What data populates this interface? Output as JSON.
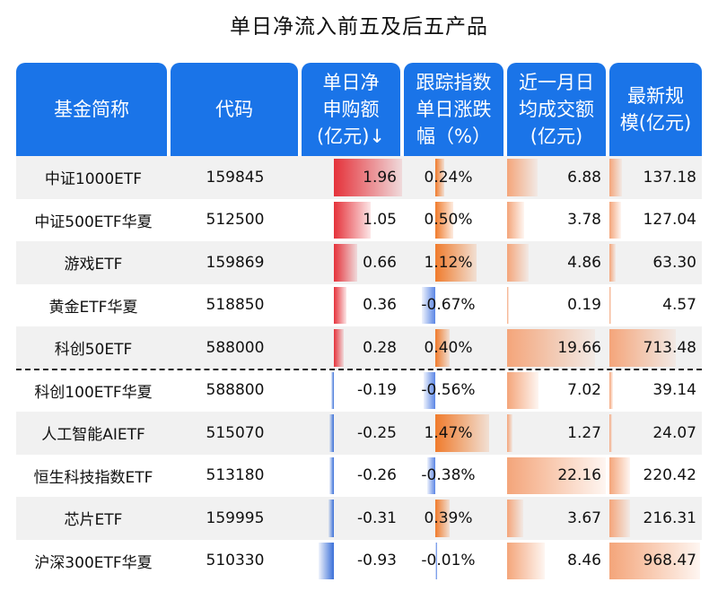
{
  "title": "单日净流入前五及后五产品",
  "headers": {
    "name": "基金简称",
    "code": "代码",
    "flow": [
      "单日净",
      "申购额",
      "(亿元)↓"
    ],
    "pct": [
      "跟踪指数",
      "单日涨跌",
      "幅（%）"
    ],
    "vol": [
      "近一月日",
      "均成交额",
      "(亿元)"
    ],
    "aum": [
      "最新规",
      "模(亿元)"
    ]
  },
  "colors": {
    "header_bg": "#1a74e8",
    "positive_flow": "#e5323a",
    "negative_flow": "#3a6fd8",
    "positive_pct": "#f07b2c",
    "negative_pct": "#5b86e5",
    "volume": "#f4a57a"
  },
  "chart_data": {
    "type": "table",
    "columns": [
      "基金简称",
      "代码",
      "单日净申购额(亿元)",
      "跟踪指数单日涨跌幅（%）",
      "近一月日均成交额(亿元)",
      "最新规模(亿元)"
    ],
    "rows": [
      {
        "name": "中证1000ETF",
        "code": "159845",
        "flow": "1.96",
        "pct": "0.24%",
        "vol": "6.88",
        "aum": "137.18"
      },
      {
        "name": "中证500ETF华夏",
        "code": "512500",
        "flow": "1.05",
        "pct": "0.50%",
        "vol": "3.78",
        "aum": "127.04"
      },
      {
        "name": "游戏ETF",
        "code": "159869",
        "flow": "0.66",
        "pct": "1.12%",
        "vol": "4.86",
        "aum": "63.30"
      },
      {
        "name": "黄金ETF华夏",
        "code": "518850",
        "flow": "0.36",
        "pct": "-0.67%",
        "vol": "0.19",
        "aum": "4.57"
      },
      {
        "name": "科创50ETF",
        "code": "588000",
        "flow": "0.28",
        "pct": "0.40%",
        "vol": "19.66",
        "aum": "713.48"
      },
      {
        "name": "科创100ETF华夏",
        "code": "588800",
        "flow": "-0.19",
        "pct": "-0.56%",
        "vol": "7.02",
        "aum": "39.14"
      },
      {
        "name": "人工智能AIETF",
        "code": "515070",
        "flow": "-0.25",
        "pct": "1.47%",
        "vol": "1.27",
        "aum": "24.07"
      },
      {
        "name": "恒生科技指数ETF",
        "code": "513180",
        "flow": "-0.26",
        "pct": "-0.38%",
        "vol": "22.16",
        "aum": "220.42"
      },
      {
        "name": "芯片ETF",
        "code": "159995",
        "flow": "-0.31",
        "pct": "0.39%",
        "vol": "3.67",
        "aum": "216.31"
      },
      {
        "name": "沪深300ETF华夏",
        "code": "510330",
        "flow": "-0.93",
        "pct": "-0.01%",
        "vol": "8.46",
        "aum": "968.47"
      }
    ]
  }
}
